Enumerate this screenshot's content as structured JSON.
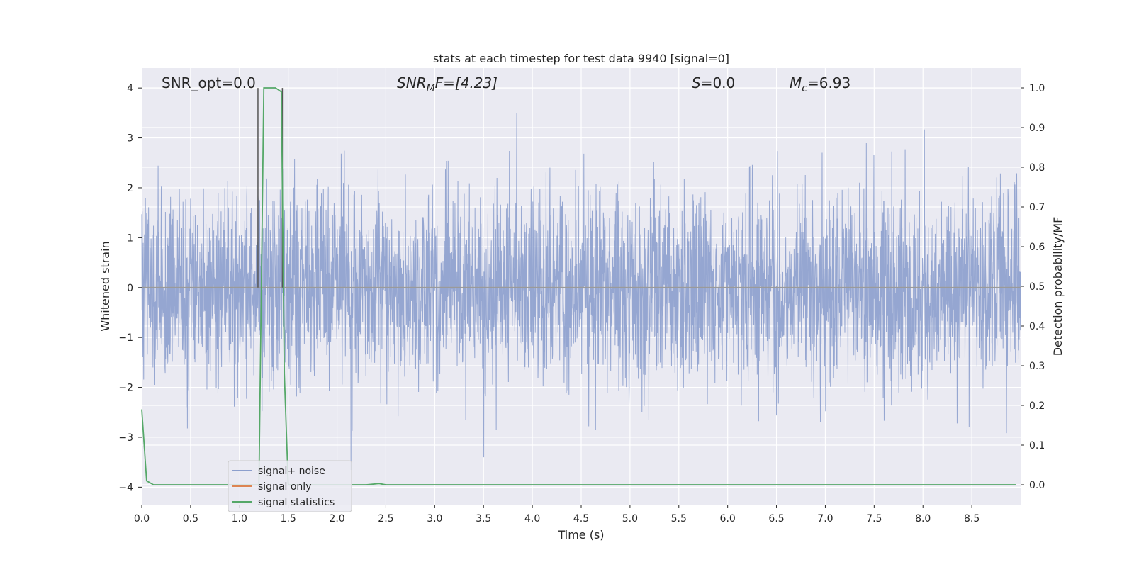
{
  "chart_data": {
    "type": "line",
    "title": "stats at each timestep for test data 9940 [signal=0]",
    "xlabel": "Time (s)",
    "ylabel": "Whitened strain",
    "y2label": "Detection probability/MF",
    "xlim": [
      0,
      9.0
    ],
    "ylim": [
      -4.35,
      4.4
    ],
    "y2lim": [
      -0.05,
      1.05
    ],
    "xticks": [
      "0.0",
      "0.5",
      "1.0",
      "1.5",
      "2.0",
      "2.5",
      "3.0",
      "3.5",
      "4.0",
      "4.5",
      "5.0",
      "5.5",
      "6.0",
      "6.5",
      "7.0",
      "7.5",
      "8.0",
      "8.5"
    ],
    "yticks": [
      "4",
      "3",
      "2",
      "1",
      "0",
      "−1",
      "−2",
      "−3",
      "−4"
    ],
    "y2ticks": [
      "1.0",
      "0.9",
      "0.8",
      "0.7",
      "0.6",
      "0.5",
      "0.4",
      "0.3",
      "0.2",
      "0.1",
      "0.0"
    ],
    "grid": true,
    "legend_position": "lower-left",
    "annotations": {
      "snr_opt": "SNR_opt=0.0",
      "snr_mf_main": "SNR",
      "snr_mf_sub": "M",
      "snr_mf_rest": "F=[4.23]",
      "s_main": "S",
      "s_rest": "=0.0",
      "mc_main": "M",
      "mc_sub": "c",
      "mc_rest": "=6.93"
    },
    "vertical_lines": [
      {
        "x": 1.19,
        "y_top": 4.0
      },
      {
        "x": 1.44,
        "y_top": 4.0
      }
    ],
    "series": [
      {
        "name": "signal+ noise",
        "color": "#8c9fcd",
        "axis": "left",
        "envelope": "noise band, approximately ±1.5 typical with peaks from -3.9 to +4.0"
      },
      {
        "name": "signal only",
        "color": "#dd8452",
        "axis": "left",
        "x": [
          0,
          9.0
        ],
        "y": [
          0,
          0
        ]
      },
      {
        "name": "signal statistics",
        "color": "#55a868",
        "axis": "right",
        "x": [
          0,
          0.05,
          0.12,
          1.17,
          1.2,
          1.25,
          1.37,
          1.43,
          1.46,
          1.5,
          1.55,
          2.3,
          2.43,
          2.5,
          3.0,
          4.0,
          5.0,
          6.0,
          7.0,
          8.0,
          8.95
        ],
        "y": [
          0.19,
          0.01,
          0.0,
          0.0,
          0.0,
          1.0,
          1.0,
          0.99,
          0.28,
          0.0,
          0.0,
          0.0,
          0.003,
          0.0,
          0.0,
          0.0,
          0.0,
          0.0,
          0.0,
          0.0,
          0.0
        ]
      }
    ]
  },
  "colors": {
    "plot_background": "#eaeaf2",
    "grid": "#ffffff",
    "noise": "#8c9fcd",
    "signal_only": "#dd8452",
    "statistics": "#55a868",
    "vline": "#555555"
  }
}
